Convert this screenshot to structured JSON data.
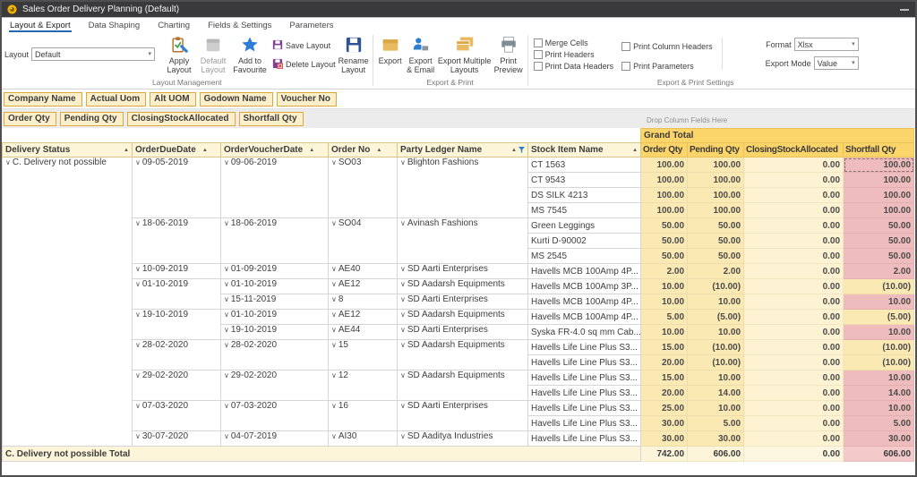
{
  "window": {
    "title": "Sales Order Delivery Planning (Default)"
  },
  "ribbon": {
    "tabs": [
      "Layout & Export",
      "Data Shaping",
      "Charting",
      "Fields & Settings",
      "Parameters"
    ],
    "active_tab": 0,
    "layout_management": {
      "label": "Layout Management",
      "layout_field_label": "Layout",
      "layout_value": "Default",
      "buttons": {
        "apply": "Apply Layout",
        "default": "Default Layout",
        "favourite": "Add to Favourite",
        "save": "Save Layout",
        "delete": "Delete Layout",
        "rename": "Rename Layout"
      }
    },
    "export_print": {
      "label": "Export & Print",
      "buttons": {
        "export": "Export",
        "export_email": "Export & Email",
        "export_multiple": "Export Multiple Layouts",
        "print_preview": "Print Preview"
      }
    },
    "settings": {
      "label": "Export & Print Settings",
      "checkbox_col1": [
        "Merge Cells",
        "Print Headers",
        "Print Data Headers"
      ],
      "checkbox_col2": [
        "Print Column Headers",
        "Print Parameters"
      ],
      "checkboxes_checked": false,
      "format_label": "Format",
      "format_value": "Xlsx",
      "export_mode_label": "Export Mode",
      "export_mode_value": "Value"
    }
  },
  "fields": {
    "row_fields": [
      "Company Name",
      "Actual Uom",
      "Alt UOM",
      "Godown Name",
      "Voucher No"
    ],
    "data_fields": [
      "Order Qty",
      "Pending Qty",
      "ClosingStockAllocated",
      "Shortfall Qty"
    ]
  },
  "grid": {
    "drop_hint": "Drop Column Fields Here",
    "grand_total_label": "Grand Total",
    "group_columns": [
      {
        "label": "Delivery Status",
        "sort": "asc",
        "arrow_far": true
      },
      {
        "label": "OrderDueDate",
        "sort": "asc",
        "arrow_far": false
      },
      {
        "label": "OrderVoucherDate",
        "sort": "asc",
        "arrow_far": false
      },
      {
        "label": "Order No",
        "sort": "asc",
        "arrow_far": false
      },
      {
        "label": "Party Ledger Name",
        "sort": "asc",
        "arrow_far": true,
        "filtered": true
      },
      {
        "label": "Stock Item Name",
        "sort": "asc",
        "arrow_far": true
      }
    ],
    "value_columns": [
      "Order Qty",
      "Pending Qty",
      "ClosingStockAllocated",
      "Shortfall Qty"
    ],
    "rows": [
      {
        "status": {
          "t": "C. Delivery not possible",
          "span": 19
        },
        "due": {
          "t": "09-05-2019",
          "span": 4
        },
        "vdate": {
          "t": "09-06-2019",
          "span": 4
        },
        "order_no": {
          "t": "SO03",
          "span": 4
        },
        "party": {
          "t": "Blighton Fashions",
          "span": 4
        },
        "item": "CT 1563",
        "values": [
          "100.00",
          "100.00",
          "0.00",
          "100.00"
        ],
        "focused": true
      },
      {
        "item": "CT 9543",
        "values": [
          "100.00",
          "100.00",
          "0.00",
          "100.00"
        ]
      },
      {
        "item": "DS SILK 4213",
        "values": [
          "100.00",
          "100.00",
          "0.00",
          "100.00"
        ]
      },
      {
        "item": "MS 7545",
        "values": [
          "100.00",
          "100.00",
          "0.00",
          "100.00"
        ]
      },
      {
        "due": {
          "t": "18-06-2019",
          "span": 3
        },
        "vdate": {
          "t": "18-06-2019",
          "span": 3
        },
        "order_no": {
          "t": "SO04",
          "span": 3
        },
        "party": {
          "t": "Avinash Fashions",
          "span": 3
        },
        "item": "Green Leggings",
        "values": [
          "50.00",
          "50.00",
          "0.00",
          "50.00"
        ]
      },
      {
        "item": "Kurti D-90002",
        "values": [
          "50.00",
          "50.00",
          "0.00",
          "50.00"
        ]
      },
      {
        "item": "MS 2545",
        "values": [
          "50.00",
          "50.00",
          "0.00",
          "50.00"
        ]
      },
      {
        "due": {
          "t": "10-09-2019",
          "span": 1
        },
        "vdate": {
          "t": "01-09-2019",
          "span": 1
        },
        "order_no": {
          "t": "AE40",
          "span": 1
        },
        "party": {
          "t": "SD Aarti Enterprises",
          "span": 1
        },
        "item": "Havells MCB 100Amp 4P...",
        "values": [
          "2.00",
          "2.00",
          "0.00",
          "2.00"
        ]
      },
      {
        "due": {
          "t": "01-10-2019",
          "span": 2
        },
        "vdate": {
          "t": "01-10-2019",
          "span": 1
        },
        "order_no": {
          "t": "AE12",
          "span": 1
        },
        "party": {
          "t": "SD Aadarsh Equipments",
          "span": 1
        },
        "item": "Havells MCB 100Amp 3P...",
        "values": [
          "10.00",
          "(10.00)",
          "0.00",
          "(10.00)"
        ]
      },
      {
        "vdate": {
          "t": "15-11-2019",
          "span": 1
        },
        "order_no": {
          "t": "8",
          "span": 1
        },
        "party": {
          "t": "SD Aarti Enterprises",
          "span": 1
        },
        "item": "Havells MCB 100Amp 4P...",
        "values": [
          "10.00",
          "10.00",
          "0.00",
          "10.00"
        ]
      },
      {
        "due": {
          "t": "19-10-2019",
          "span": 2
        },
        "vdate": {
          "t": "01-10-2019",
          "span": 1
        },
        "order_no": {
          "t": "AE12",
          "span": 1
        },
        "party": {
          "t": "SD Aadarsh Equipments",
          "span": 1
        },
        "item": "Havells MCB 100Amp 4P...",
        "values": [
          "5.00",
          "(5.00)",
          "0.00",
          "(5.00)"
        ]
      },
      {
        "vdate": {
          "t": "19-10-2019",
          "span": 1
        },
        "order_no": {
          "t": "AE44",
          "span": 1
        },
        "party": {
          "t": "SD Aarti Enterprises",
          "span": 1
        },
        "item": "Syska FR-4.0 sq mm Cab...",
        "values": [
          "10.00",
          "10.00",
          "0.00",
          "10.00"
        ]
      },
      {
        "due": {
          "t": "28-02-2020",
          "span": 2
        },
        "vdate": {
          "t": "28-02-2020",
          "span": 2
        },
        "order_no": {
          "t": "15",
          "span": 2
        },
        "party": {
          "t": "SD Aadarsh Equipments",
          "span": 2
        },
        "item": "Havells Life Line Plus S3...",
        "values": [
          "15.00",
          "(10.00)",
          "0.00",
          "(10.00)"
        ]
      },
      {
        "item": "Havells Life Line Plus S3...",
        "values": [
          "20.00",
          "(10.00)",
          "0.00",
          "(10.00)"
        ]
      },
      {
        "due": {
          "t": "29-02-2020",
          "span": 2
        },
        "vdate": {
          "t": "29-02-2020",
          "span": 2
        },
        "order_no": {
          "t": "12",
          "span": 2
        },
        "party": {
          "t": "SD Aadarsh Equipments",
          "span": 2
        },
        "item": "Havells Life Line Plus S3...",
        "values": [
          "15.00",
          "10.00",
          "0.00",
          "10.00"
        ]
      },
      {
        "item": "Havells Life Line Plus S3...",
        "values": [
          "20.00",
          "14.00",
          "0.00",
          "14.00"
        ]
      },
      {
        "due": {
          "t": "07-03-2020",
          "span": 2
        },
        "vdate": {
          "t": "07-03-2020",
          "span": 2
        },
        "order_no": {
          "t": "16",
          "span": 2
        },
        "party": {
          "t": "SD Aarti Enterprises",
          "span": 2
        },
        "item": "Havells Life Line Plus S3...",
        "values": [
          "25.00",
          "10.00",
          "0.00",
          "10.00"
        ]
      },
      {
        "item": "Havells Life Line Plus S3...",
        "values": [
          "30.00",
          "5.00",
          "0.00",
          "5.00"
        ]
      },
      {
        "due": {
          "t": "30-07-2020",
          "span": 1
        },
        "vdate": {
          "t": "04-07-2019",
          "span": 1
        },
        "order_no": {
          "t": "AI30",
          "span": 1
        },
        "party": {
          "t": "SD Aaditya Industries",
          "span": 1
        },
        "item": "Havells Life Line Plus S3...",
        "values": [
          "30.00",
          "30.00",
          "0.00",
          "30.00"
        ]
      }
    ],
    "total_row": {
      "label": "C. Delivery not possible Total",
      "values": [
        "742.00",
        "606.00",
        "0.00",
        "606.00"
      ]
    }
  },
  "colors": {
    "grand_total_bg": "#fbd46a",
    "value_cell_bg": "#fbe9b4",
    "closing_cell_bg": "#fdf3d2",
    "shortfall_bg": "#efbcbd",
    "chip_bg": "#fcefca",
    "chip_border": "#dfa63d",
    "accent_blue": "#2d7dd2",
    "titlebar_bg": "#3a3a3c"
  }
}
